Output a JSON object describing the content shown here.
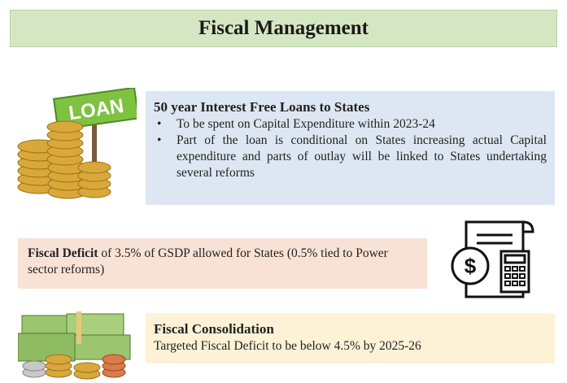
{
  "header": {
    "title": "Fiscal Management"
  },
  "sections": [
    {
      "heading": "50 year Interest Free Loans to States",
      "bullets": [
        "To be spent on Capital Expenditure within 2023-24",
        "Part of the loan is conditional on States increasing actual Capital expenditure and parts of outlay will be linked to States undertaking several reforms"
      ]
    },
    {
      "heading": "Fiscal Deficit",
      "text": "of 3.5% of GSDP allowed for States (0.5% tied to Power sector reforms)"
    },
    {
      "heading": "Fiscal Consolidation",
      "text": "Targeted Fiscal Deficit to be below 4.5% by 2025-26"
    }
  ],
  "icons": {
    "loan_sign": "LOAN",
    "calculator_symbol": "$"
  }
}
